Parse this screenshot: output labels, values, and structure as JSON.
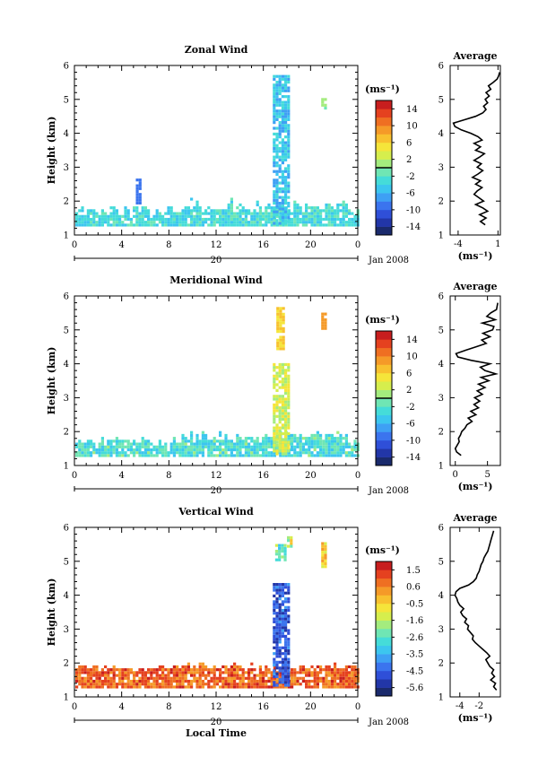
{
  "figure": {
    "date_label": "Jan 2008",
    "day_label": "20",
    "shared_xlabel": "Local Time"
  },
  "chart_data": [
    {
      "type": "heatmap",
      "title": "Zonal Wind",
      "xlabel": "",
      "ylabel": "Height (km)",
      "xlim": [
        0,
        24
      ],
      "ylim": [
        1,
        6
      ],
      "x_ticks": [
        "0",
        "4",
        "8",
        "12",
        "16",
        "20",
        "0"
      ],
      "y_ticks": [
        "1",
        "2",
        "3",
        "4",
        "5",
        "6"
      ],
      "colorbar": {
        "unit": "(ms⁻¹)",
        "ticks": [
          "14",
          "10",
          "6",
          "2",
          "-2",
          "-6",
          "-10",
          "-14"
        ],
        "vmin": -16,
        "vmax": 16,
        "zero_line": 0
      },
      "average_profile": {
        "title": "Average",
        "xlabel": "(ms⁻¹)",
        "x_ticks": [
          "-4",
          "1"
        ],
        "xlim": [
          -5,
          1.3
        ],
        "heights": [
          1.3,
          1.4,
          1.5,
          1.6,
          1.7,
          1.8,
          1.9,
          2.0,
          2.1,
          2.2,
          2.3,
          2.4,
          2.5,
          2.6,
          2.7,
          2.8,
          2.9,
          3.0,
          3.1,
          3.2,
          3.3,
          3.4,
          3.5,
          3.6,
          3.7,
          3.8,
          3.9,
          4.0,
          4.1,
          4.2,
          4.3,
          4.4,
          4.5,
          4.6,
          4.7,
          4.8,
          4.9,
          5.0,
          5.1,
          5.2,
          5.3,
          5.4,
          5.5,
          5.6,
          5.7,
          5.8
        ],
        "values": [
          -0.6,
          -1.2,
          -0.5,
          -1.3,
          -0.3,
          -0.9,
          -1.8,
          -0.8,
          -1.4,
          -2.0,
          -1.6,
          -1.0,
          -1.8,
          -1.2,
          -2.2,
          -1.5,
          -0.9,
          -1.6,
          -1.1,
          -2.0,
          -1.3,
          -0.7,
          -1.8,
          -1.2,
          -2.0,
          -1.0,
          -1.5,
          -2.4,
          -3.6,
          -4.4,
          -4.6,
          -3.2,
          -1.8,
          -0.9,
          -0.5,
          -0.8,
          -0.3,
          -0.6,
          -0.1,
          -0.5,
          0.1,
          -0.2,
          0.4,
          0.9,
          1.1,
          1.2
        ]
      }
    },
    {
      "type": "heatmap",
      "title": "Meridional Wind",
      "xlabel": "",
      "ylabel": "Height (km)",
      "xlim": [
        0,
        24
      ],
      "ylim": [
        1,
        6
      ],
      "x_ticks": [
        "0",
        "4",
        "8",
        "12",
        "16",
        "20",
        "0"
      ],
      "y_ticks": [
        "1",
        "2",
        "3",
        "4",
        "5",
        "6"
      ],
      "colorbar": {
        "unit": "(ms⁻¹)",
        "ticks": [
          "14",
          "10",
          "6",
          "2",
          "-2",
          "-6",
          "-10",
          "-14"
        ],
        "vmin": -16,
        "vmax": 16,
        "zero_line": 0
      },
      "average_profile": {
        "title": "Average",
        "xlabel": "(ms⁻¹)",
        "x_ticks": [
          "0",
          "5"
        ],
        "xlim": [
          -0.8,
          7
        ],
        "heights": [
          1.3,
          1.4,
          1.5,
          1.6,
          1.7,
          1.8,
          1.9,
          2.0,
          2.1,
          2.2,
          2.3,
          2.4,
          2.5,
          2.6,
          2.7,
          2.8,
          2.9,
          3.0,
          3.1,
          3.2,
          3.3,
          3.4,
          3.5,
          3.6,
          3.7,
          3.8,
          3.9,
          4.0,
          4.1,
          4.2,
          4.3,
          4.4,
          4.5,
          4.6,
          4.7,
          4.8,
          4.9,
          5.0,
          5.1,
          5.2,
          5.3,
          5.4,
          5.5,
          5.6,
          5.7,
          5.8
        ],
        "values": [
          0.9,
          0.2,
          0.0,
          0.3,
          0.6,
          0.5,
          0.8,
          1.0,
          1.5,
          1.8,
          2.6,
          2.0,
          3.2,
          2.4,
          3.6,
          2.9,
          3.8,
          3.0,
          4.2,
          3.4,
          4.6,
          3.6,
          5.2,
          4.0,
          6.3,
          4.6,
          3.9,
          5.4,
          2.5,
          0.4,
          0.1,
          1.6,
          3.2,
          4.8,
          4.1,
          5.4,
          4.3,
          5.8,
          6.0,
          4.2,
          6.2,
          4.9,
          5.5,
          6.4,
          6.5,
          6.6
        ]
      }
    },
    {
      "type": "heatmap",
      "title": "Vertical Wind",
      "xlabel": "Local Time",
      "ylabel": "Height (km)",
      "xlim": [
        0,
        24
      ],
      "ylim": [
        1,
        6
      ],
      "x_ticks": [
        "0",
        "4",
        "8",
        "12",
        "16",
        "20",
        "0"
      ],
      "y_ticks": [
        "1",
        "2",
        "3",
        "4",
        "5",
        "6"
      ],
      "colorbar": {
        "unit": "(ms⁻¹)",
        "ticks": [
          "1.5",
          "0.6",
          "-0.5",
          "-1.6",
          "-2.6",
          "-3.5",
          "-4.5",
          "-5.6"
        ],
        "vmin": -6.1,
        "vmax": 2.0
      },
      "average_profile": {
        "title": "Average",
        "xlabel": "(ms⁻¹)",
        "x_ticks": [
          "-4",
          "-2"
        ],
        "xlim": [
          -5.0,
          0.2
        ],
        "heights": [
          1.2,
          1.3,
          1.4,
          1.5,
          1.6,
          1.7,
          1.8,
          1.9,
          2.0,
          2.1,
          2.2,
          2.3,
          2.4,
          2.5,
          2.6,
          2.7,
          2.8,
          2.9,
          3.0,
          3.1,
          3.2,
          3.3,
          3.4,
          3.5,
          3.6,
          3.7,
          3.8,
          3.9,
          4.0,
          4.1,
          4.2,
          4.3,
          4.4,
          4.5,
          4.6,
          4.7,
          4.8,
          4.9,
          5.0,
          5.1,
          5.2,
          5.3,
          5.4,
          5.5,
          5.6,
          5.7,
          5.8,
          5.9
        ],
        "values": [
          -0.2,
          -0.5,
          -0.3,
          -0.8,
          -0.4,
          -0.7,
          -0.5,
          -0.9,
          -1.1,
          -1.3,
          -0.9,
          -1.2,
          -1.6,
          -2.0,
          -2.4,
          -2.7,
          -2.6,
          -2.9,
          -3.2,
          -3.1,
          -3.5,
          -3.3,
          -3.7,
          -3.9,
          -3.6,
          -4.0,
          -4.2,
          -4.3,
          -4.5,
          -4.4,
          -4.0,
          -3.1,
          -2.6,
          -2.3,
          -2.2,
          -2.0,
          -1.9,
          -1.8,
          -1.6,
          -1.5,
          -1.3,
          -1.1,
          -1.0,
          -0.9,
          -0.8,
          -0.7,
          -0.6,
          -0.5
        ]
      }
    }
  ]
}
